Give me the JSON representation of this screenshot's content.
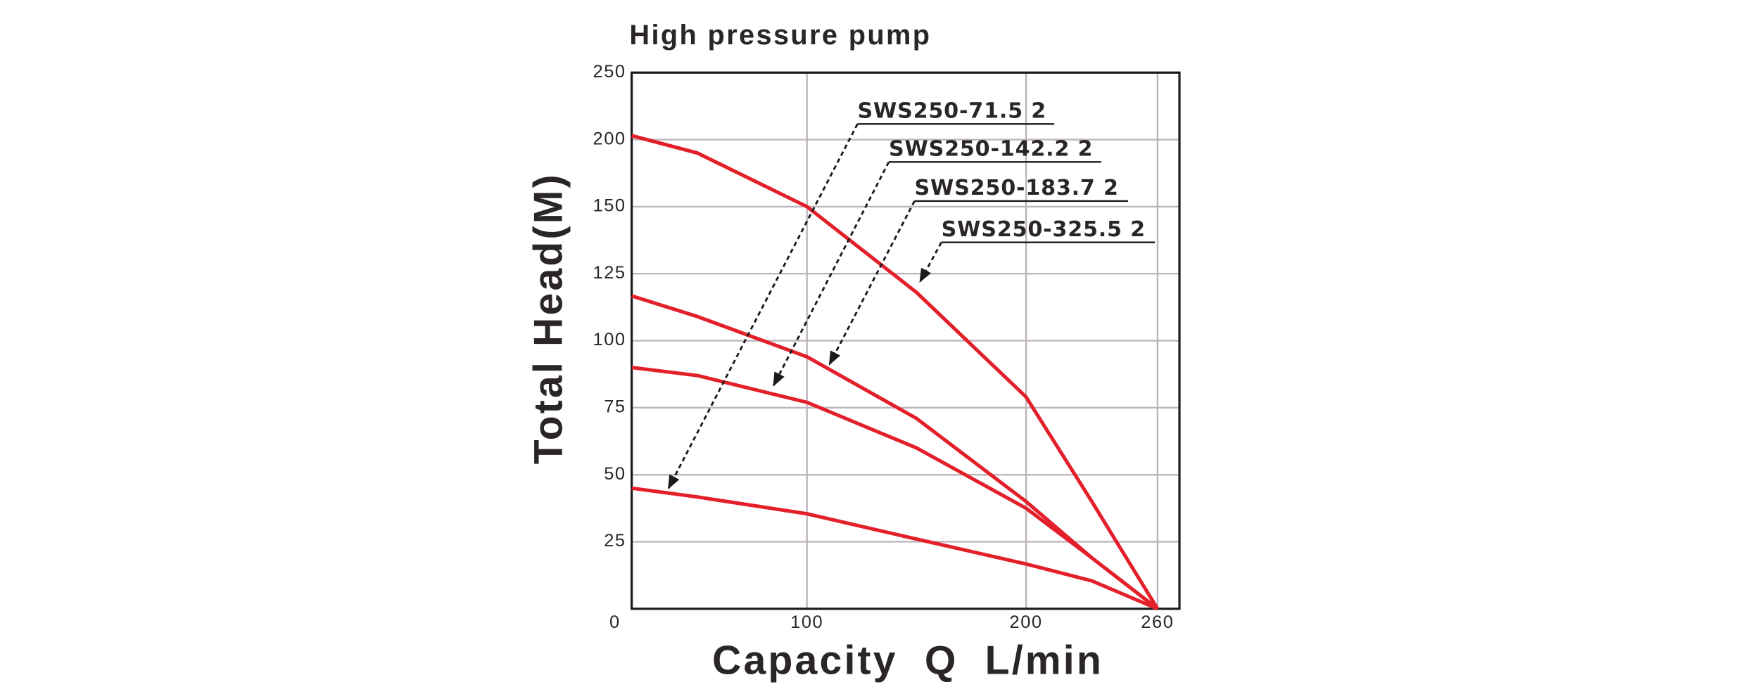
{
  "chart_data": {
    "type": "line",
    "title": "High pressure pump",
    "x_label": "Capacity  Q  L/min",
    "y_label": "Total Head(M)",
    "x": [
      20,
      50,
      100,
      150,
      200,
      230,
      260
    ],
    "series": [
      {
        "name": "SWS250-71.5 2",
        "color": "#e3202a",
        "values": [
          45,
          41.7,
          35.4,
          26,
          16.7,
          10.4,
          0
        ]
      },
      {
        "name": "SWS250-142.2 2",
        "color": "#e3202a",
        "values": [
          90,
          87,
          77,
          60,
          37.5,
          19,
          0
        ]
      },
      {
        "name": "SWS250-183.7 2",
        "color": "#e3202a",
        "values": [
          116.7,
          109,
          94,
          71,
          40,
          19,
          0
        ]
      },
      {
        "name": "SWS250-325.5 2",
        "color": "#e3202a",
        "values": [
          203,
          190,
          150,
          118,
          79,
          40,
          0
        ]
      }
    ],
    "xlim": [
      20,
      270
    ],
    "xticks": [
      100,
      200,
      260
    ],
    "ylim": [
      0,
      250
    ],
    "yticks": [
      0,
      25,
      50,
      75,
      100,
      125,
      150,
      200,
      250
    ],
    "grid": true
  }
}
